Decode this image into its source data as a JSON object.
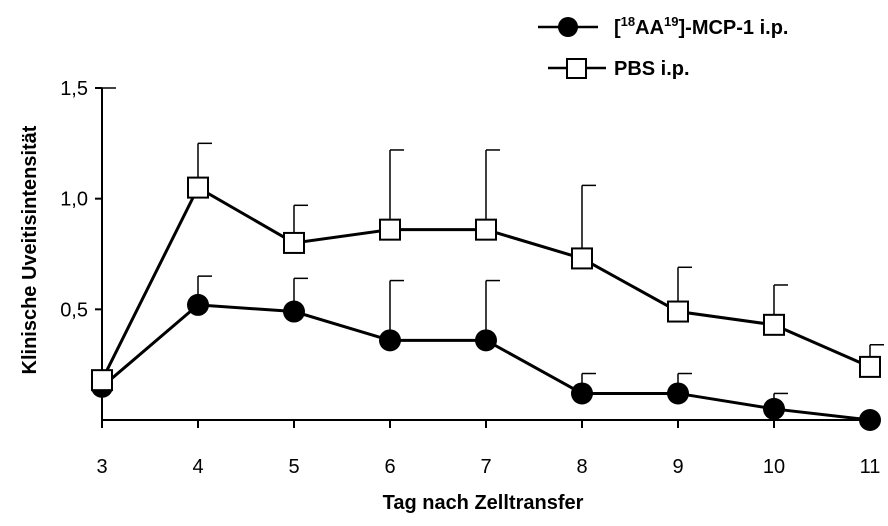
{
  "chart_data": {
    "type": "line",
    "title": "",
    "xlabel": "Tag nach Zelltransfer",
    "ylabel": "Klinische Uveitisintensität",
    "x": [
      3,
      4,
      5,
      6,
      7,
      8,
      9,
      10,
      11
    ],
    "xticks": [
      "3",
      "4",
      "5",
      "6",
      "7",
      "8",
      "9",
      "10",
      "11"
    ],
    "yticks": [
      "0,5",
      "1,0",
      "1,5"
    ],
    "xlim": [
      3,
      11
    ],
    "ylim": [
      0,
      1.5
    ],
    "grid": false,
    "legend_position": "top-right",
    "series": [
      {
        "name_prefix": "[",
        "name_sup1": "18",
        "name_mid": "AA",
        "name_sup2": "19",
        "name_suffix": "]-MCP-1 i.p.",
        "marker": "filled-circle",
        "color": "#000000",
        "values": [
          0.15,
          0.52,
          0.49,
          0.36,
          0.36,
          0.12,
          0.12,
          0.05,
          0.0
        ],
        "error_plus": [
          0.0,
          0.13,
          0.15,
          0.27,
          0.27,
          0.09,
          0.09,
          0.07,
          0.0
        ]
      },
      {
        "name": "PBS i.p.",
        "marker": "open-square",
        "color": "#000000",
        "values": [
          0.18,
          1.05,
          0.8,
          0.86,
          0.86,
          0.73,
          0.49,
          0.43,
          0.24
        ],
        "error_plus": [
          1.32,
          0.2,
          0.17,
          0.36,
          0.36,
          0.33,
          0.2,
          0.18,
          0.1
        ]
      }
    ]
  }
}
